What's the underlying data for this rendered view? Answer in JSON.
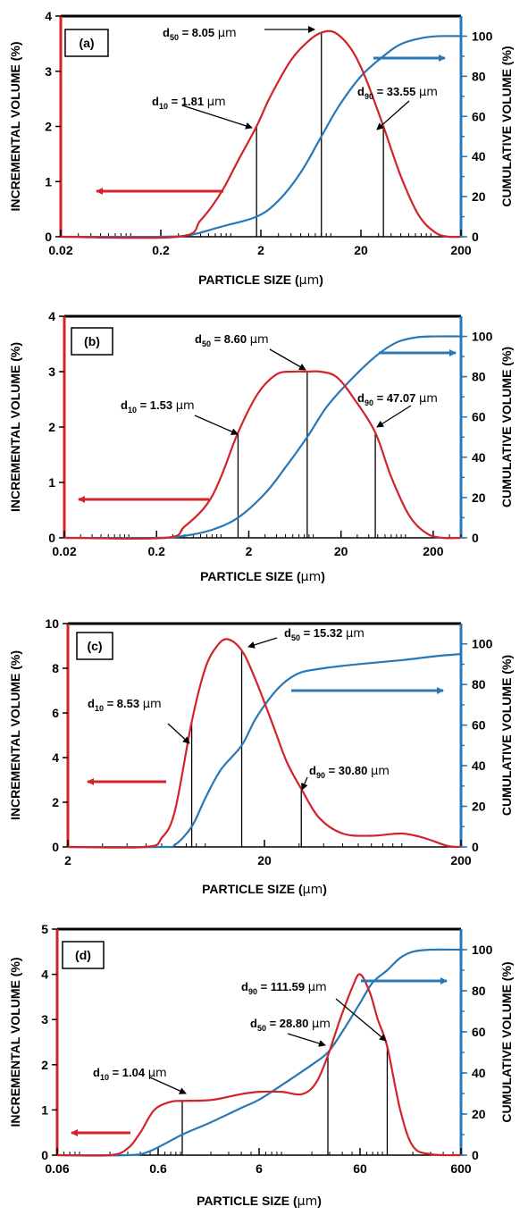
{
  "colors": {
    "incremental": "#d2232a",
    "cumulative": "#2878b8",
    "axis": "#000000",
    "marker": "#000000"
  },
  "chart_data": [
    {
      "type": "line",
      "panel_label": "(a)",
      "xscale": "log",
      "xlabel_text": "PARTICLE SIZE (",
      "xlabel_unit": "µm",
      "xlabel_close": ")",
      "ylabel": "INCREMENTAL VOLUME (%)",
      "y2label": "CUMULATIVE VOLUME (%)",
      "xlim": [
        0.02,
        200
      ],
      "xticks": [
        0.02,
        0.2,
        2,
        20,
        200
      ],
      "xtick_labels": [
        "0.02",
        "0.2",
        "2",
        "20",
        "200"
      ],
      "ylim": [
        0,
        4
      ],
      "yticks": [
        0,
        1,
        2,
        3,
        4
      ],
      "ytick_labels": [
        "0",
        "1",
        "2",
        "3",
        "4"
      ],
      "y2lim": [
        0,
        110
      ],
      "y2ticks": [
        0,
        20,
        40,
        60,
        80,
        100
      ],
      "y2tick_labels": [
        "0",
        "20",
        "40",
        "60",
        "80",
        "100"
      ],
      "series": [
        {
          "axis": "left",
          "points": [
            [
              0.3,
              0
            ],
            [
              0.5,
              0.3
            ],
            [
              0.8,
              0.8
            ],
            [
              1.2,
              1.4
            ],
            [
              1.81,
              2.0
            ],
            [
              2.5,
              2.55
            ],
            [
              4,
              3.2
            ],
            [
              6,
              3.55
            ],
            [
              8.05,
              3.7
            ],
            [
              11,
              3.7
            ],
            [
              16,
              3.4
            ],
            [
              22,
              2.9
            ],
            [
              33.55,
              2.0
            ],
            [
              50,
              1.1
            ],
            [
              75,
              0.4
            ],
            [
              110,
              0.08
            ],
            [
              150,
              0
            ],
            [
              200,
              0
            ]
          ]
        },
        {
          "axis": "right",
          "points": [
            [
              0.2,
              0
            ],
            [
              0.4,
              1
            ],
            [
              0.8,
              5
            ],
            [
              1.81,
              10
            ],
            [
              3,
              18
            ],
            [
              5,
              32
            ],
            [
              8.05,
              50
            ],
            [
              12,
              65
            ],
            [
              20,
              80
            ],
            [
              33.55,
              90
            ],
            [
              50,
              96
            ],
            [
              80,
              99
            ],
            [
              120,
              100
            ],
            [
              200,
              100
            ]
          ]
        }
      ],
      "markers": [
        {
          "key": "d10",
          "value": 1.81,
          "text": "= 1.81 ",
          "unit": "µm"
        },
        {
          "key": "d50",
          "value": 8.05,
          "text": "= 8.05 ",
          "unit": "µm"
        },
        {
          "key": "d90",
          "value": 33.55,
          "text": "= 33.55 ",
          "unit": "µm"
        }
      ]
    },
    {
      "type": "line",
      "panel_label": "(b)",
      "xscale": "log",
      "xlabel_text": "PARTICLE SIZE (",
      "xlabel_unit": "µm",
      "xlabel_close": ")",
      "ylabel": "INCREMENTAL VOLUME (%)",
      "y2label": "CUMULATIVE VOLUME (%)",
      "xlim": [
        0.02,
        400
      ],
      "xticks": [
        0.02,
        0.2,
        2,
        20,
        200
      ],
      "xtick_labels": [
        "0.02",
        "0.2",
        "2",
        "20",
        "200"
      ],
      "ylim": [
        0,
        4
      ],
      "yticks": [
        0,
        1,
        2,
        3,
        4
      ],
      "ytick_labels": [
        "0",
        "1",
        "2",
        "3",
        "4"
      ],
      "y2lim": [
        0,
        110
      ],
      "y2ticks": [
        0,
        20,
        40,
        60,
        80,
        100
      ],
      "y2tick_labels": [
        "0",
        "20",
        "40",
        "60",
        "80",
        "100"
      ],
      "series": [
        {
          "axis": "left",
          "points": [
            [
              0.25,
              0
            ],
            [
              0.4,
              0.2
            ],
            [
              0.7,
              0.6
            ],
            [
              1.0,
              1.1
            ],
            [
              1.53,
              1.9
            ],
            [
              2.5,
              2.6
            ],
            [
              4,
              2.95
            ],
            [
              6,
              3.0
            ],
            [
              8.6,
              3.0
            ],
            [
              12,
              3.0
            ],
            [
              18,
              2.9
            ],
            [
              28,
              2.5
            ],
            [
              47.07,
              1.9
            ],
            [
              70,
              1.1
            ],
            [
              110,
              0.4
            ],
            [
              170,
              0.08
            ],
            [
              250,
              0
            ],
            [
              400,
              0
            ]
          ]
        },
        {
          "axis": "right",
          "points": [
            [
              0.2,
              0
            ],
            [
              0.4,
              1
            ],
            [
              0.8,
              4
            ],
            [
              1.53,
              10
            ],
            [
              3,
              22
            ],
            [
              5,
              35
            ],
            [
              8.6,
              50
            ],
            [
              14,
              65
            ],
            [
              25,
              78
            ],
            [
              47.07,
              90
            ],
            [
              80,
              97
            ],
            [
              130,
              99.5
            ],
            [
              200,
              100
            ],
            [
              400,
              100
            ]
          ]
        }
      ],
      "markers": [
        {
          "key": "d10",
          "value": 1.53,
          "text": "= 1.53 ",
          "unit": "µm"
        },
        {
          "key": "d50",
          "value": 8.6,
          "text": "= 8.60 ",
          "unit": "µm"
        },
        {
          "key": "d90",
          "value": 47.07,
          "text": "= 47.07 ",
          "unit": "µm"
        }
      ]
    },
    {
      "type": "line",
      "panel_label": "(c)",
      "xscale": "log",
      "xlabel_text": "PARTICLE SIZE (",
      "xlabel_unit": "µm",
      "xlabel_close": ")",
      "ylabel": "INCREMENTAL VOLUME (%)",
      "y2label": "CUMULATIVE VOLUME (%)",
      "xlim": [
        2,
        200
      ],
      "xticks": [
        2,
        20,
        200
      ],
      "xtick_labels": [
        "2",
        "20",
        "200"
      ],
      "ylim": [
        0,
        10
      ],
      "yticks": [
        0,
        2,
        4,
        6,
        8,
        10
      ],
      "ytick_labels": [
        "0",
        "2",
        "4",
        "6",
        "8",
        "10"
      ],
      "y2lim": [
        0,
        110
      ],
      "y2ticks": [
        0,
        20,
        40,
        60,
        80,
        100
      ],
      "y2tick_labels": [
        "0",
        "20",
        "40",
        "60",
        "80",
        "100"
      ],
      "series": [
        {
          "axis": "left",
          "points": [
            [
              2,
              0
            ],
            [
              5,
              0
            ],
            [
              6,
              0.4
            ],
            [
              7,
              1.6
            ],
            [
              8.53,
              5.6
            ],
            [
              10,
              8.0
            ],
            [
              11.5,
              9.0
            ],
            [
              13,
              9.3
            ],
            [
              15.32,
              8.8
            ],
            [
              18,
              7.5
            ],
            [
              22,
              5.5
            ],
            [
              26,
              3.8
            ],
            [
              30.8,
              2.6
            ],
            [
              38,
              1.3
            ],
            [
              50,
              0.6
            ],
            [
              70,
              0.5
            ],
            [
              100,
              0.6
            ],
            [
              130,
              0.4
            ],
            [
              170,
              0.05
            ],
            [
              200,
              0
            ]
          ]
        },
        {
          "axis": "right",
          "points": [
            [
              2,
              0
            ],
            [
              6,
              0
            ],
            [
              7,
              1
            ],
            [
              8.53,
              10
            ],
            [
              10,
              24
            ],
            [
              12,
              38
            ],
            [
              15.32,
              50
            ],
            [
              18,
              63
            ],
            [
              22,
              75
            ],
            [
              26,
              82
            ],
            [
              30.8,
              86
            ],
            [
              40,
              88
            ],
            [
              60,
              90
            ],
            [
              100,
              92
            ],
            [
              150,
              94
            ],
            [
              200,
              95
            ]
          ]
        }
      ],
      "markers": [
        {
          "key": "d10",
          "value": 8.53,
          "text": "= 8.53 ",
          "unit": "µm"
        },
        {
          "key": "d50",
          "value": 15.32,
          "text": "= 15.32 ",
          "unit": "µm"
        },
        {
          "key": "d90",
          "value": 30.8,
          "text": "= 30.80 ",
          "unit": "µm"
        }
      ]
    },
    {
      "type": "line",
      "panel_label": "(d)",
      "xscale": "log",
      "xlabel_text": "PARTICLE SIZE (",
      "xlabel_unit": "µm",
      "xlabel_close": ")",
      "ylabel": "INCREMENTAL VOLUME (%)",
      "y2label": "CUMULATIVE VOLUME (%)",
      "xlim": [
        0.06,
        600
      ],
      "xticks": [
        0.06,
        0.6,
        6,
        60,
        600
      ],
      "xtick_labels": [
        "0.06",
        "0.6",
        "6",
        "60",
        "600"
      ],
      "ylim": [
        0,
        5
      ],
      "yticks": [
        0,
        1,
        2,
        3,
        4,
        5
      ],
      "ytick_labels": [
        "0",
        "1",
        "2",
        "3",
        "4",
        "5"
      ],
      "y2lim": [
        0,
        110
      ],
      "y2ticks": [
        0,
        20,
        40,
        60,
        80,
        100
      ],
      "y2tick_labels": [
        "0",
        "20",
        "40",
        "60",
        "80",
        "100"
      ],
      "series": [
        {
          "axis": "left",
          "points": [
            [
              0.2,
              0
            ],
            [
              0.3,
              0.15
            ],
            [
              0.4,
              0.5
            ],
            [
              0.55,
              1.0
            ],
            [
              0.8,
              1.18
            ],
            [
              1.04,
              1.2
            ],
            [
              2,
              1.22
            ],
            [
              4,
              1.35
            ],
            [
              6,
              1.4
            ],
            [
              10,
              1.4
            ],
            [
              16,
              1.35
            ],
            [
              22,
              1.6
            ],
            [
              28.8,
              2.2
            ],
            [
              38,
              3.0
            ],
            [
              50,
              3.7
            ],
            [
              60,
              4.0
            ],
            [
              75,
              3.6
            ],
            [
              90,
              3.0
            ],
            [
              111.59,
              2.4
            ],
            [
              150,
              1.0
            ],
            [
              200,
              0.2
            ],
            [
              300,
              0.02
            ],
            [
              600,
              0
            ]
          ]
        },
        {
          "axis": "right",
          "points": [
            [
              0.3,
              0
            ],
            [
              0.5,
              2
            ],
            [
              1.04,
              10
            ],
            [
              2,
              16
            ],
            [
              4,
              23
            ],
            [
              6,
              27
            ],
            [
              10,
              34
            ],
            [
              20,
              44
            ],
            [
              28.8,
              50
            ],
            [
              40,
              60
            ],
            [
              60,
              74
            ],
            [
              80,
              84
            ],
            [
              111.59,
              90
            ],
            [
              150,
              96
            ],
            [
              200,
              99
            ],
            [
              300,
              100
            ],
            [
              600,
              100
            ]
          ]
        }
      ],
      "markers": [
        {
          "key": "d10",
          "value": 1.04,
          "text": "= 1.04 ",
          "unit": "µm"
        },
        {
          "key": "d50",
          "value": 28.8,
          "text": "= 28.80 ",
          "unit": "µm"
        },
        {
          "key": "d90",
          "value": 111.59,
          "text": "= 111.59 ",
          "unit": "µm"
        }
      ]
    }
  ]
}
